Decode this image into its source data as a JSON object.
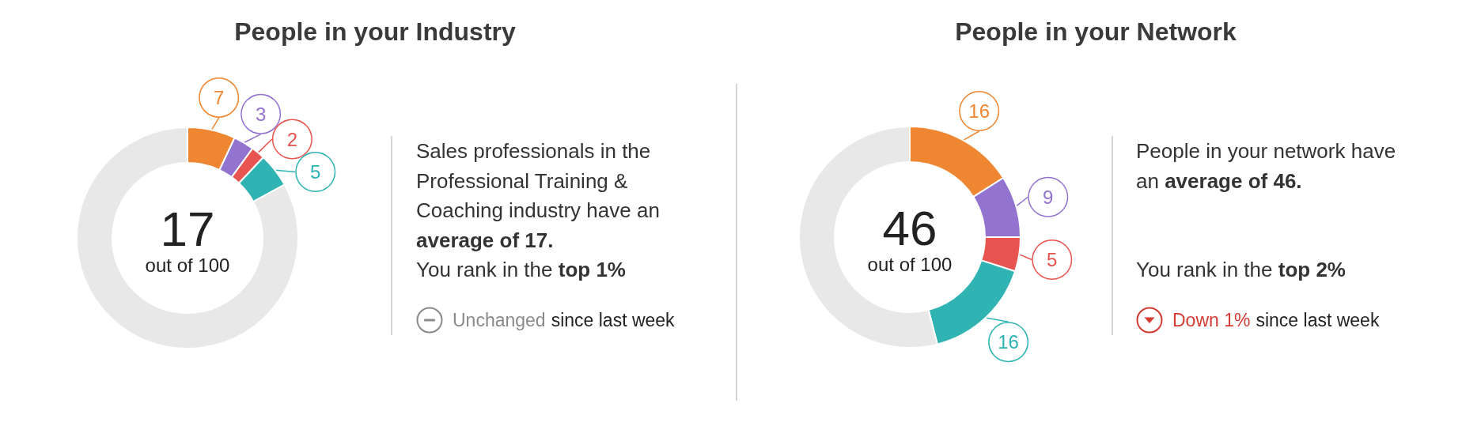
{
  "chart_data": [
    {
      "type": "donut",
      "title": "People in your Industry",
      "categories": [
        null,
        null,
        null,
        null,
        null
      ],
      "values": [
        7,
        3,
        2,
        5,
        83
      ],
      "colors": [
        "#ef8632",
        "#9373d0",
        "#e85450",
        "#2fb3b3",
        "#e8e8e8"
      ],
      "value_labels": [
        "7",
        "3",
        "2",
        "5",
        null
      ],
      "annotations": [
        "17",
        "out of 100",
        "Sales professionals in the Professional Training & Coaching industry have an",
        "average of 17.",
        "You rank in the",
        "top 1%",
        "Unchanged",
        "since last week"
      ]
    },
    {
      "type": "donut",
      "title": "People in your Network",
      "categories": [
        null,
        null,
        null,
        null,
        null
      ],
      "values": [
        16,
        9,
        5,
        16,
        54
      ],
      "colors": [
        "#ef8632",
        "#9373d0",
        "#e85450",
        "#2fb3b3",
        "#e8e8e8"
      ],
      "value_labels": [
        "16",
        "9",
        "5",
        "16",
        null
      ],
      "annotations": [
        "46",
        "out of 100",
        "People in your network have an",
        "average of 46.",
        "You rank in the",
        "top 2%",
        "Down 1%",
        "since last week"
      ]
    }
  ]
}
